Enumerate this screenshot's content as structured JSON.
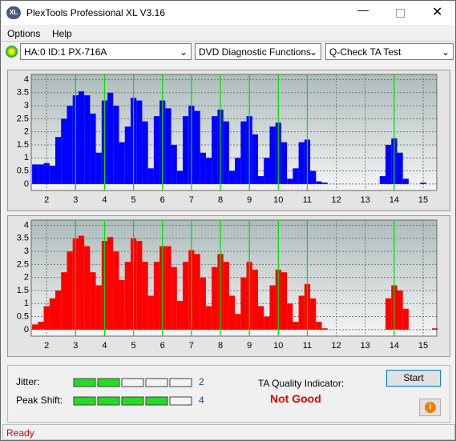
{
  "window": {
    "title": "PlexTools Professional XL V3.16",
    "icon": "XL"
  },
  "menu": [
    "Options",
    "Help"
  ],
  "toolbar": {
    "drive": "HA:0 ID:1  PX-716A",
    "function": "DVD Diagnostic Functions",
    "test": "Q-Check TA Test"
  },
  "charts": [
    {
      "type": "histogram",
      "color": "#0000ff",
      "marker_color": "#00e000",
      "markers": [
        3,
        4,
        5,
        6,
        7,
        8,
        9,
        10,
        11,
        14
      ],
      "xlim": [
        1.47,
        15.47
      ],
      "ylim": [
        -0.25,
        4.2
      ],
      "xticks": [
        2,
        3,
        4,
        5,
        6,
        7,
        8,
        9,
        10,
        11,
        12,
        13,
        14,
        15
      ],
      "yticks": [
        0,
        0.5,
        1,
        1.5,
        2,
        2.5,
        3,
        3.5,
        4
      ],
      "grid": true,
      "bins": [
        1.5,
        1.7,
        1.9,
        2.1,
        2.3,
        2.5,
        2.7,
        2.9,
        3.1,
        3.3,
        3.5,
        3.7,
        3.9,
        4.1,
        4.3,
        4.5,
        4.7,
        4.9,
        5.1,
        5.3,
        5.5,
        5.7,
        5.9,
        6.1,
        6.3,
        6.5,
        6.7,
        6.9,
        7.1,
        7.3,
        7.5,
        7.7,
        7.9,
        8.1,
        8.3,
        8.5,
        8.7,
        8.9,
        9.1,
        9.3,
        9.5,
        9.7,
        9.9,
        10.1,
        10.3,
        10.5,
        10.7,
        10.9,
        11.1,
        11.3,
        11.5,
        11.7,
        11.9,
        12.1,
        12.3,
        12.5,
        12.7,
        12.9,
        13.1,
        13.3,
        13.5,
        13.7,
        13.9,
        14.1,
        14.3,
        14.5,
        14.7,
        14.9,
        15.1,
        15.3,
        15.5
      ],
      "values": [
        0.75,
        0.75,
        0.8,
        0.7,
        1.8,
        2.5,
        3.0,
        3.4,
        3.55,
        3.4,
        2.7,
        1.2,
        3.2,
        3.5,
        3.0,
        1.6,
        2.2,
        3.3,
        3.2,
        2.4,
        0.6,
        2.6,
        3.2,
        2.9,
        1.5,
        0.5,
        2.6,
        3.0,
        2.8,
        1.2,
        1.0,
        2.6,
        2.85,
        2.4,
        0.5,
        1.0,
        2.4,
        2.6,
        1.9,
        0.3,
        1.0,
        2.2,
        2.35,
        1.6,
        0.2,
        0.6,
        1.6,
        1.7,
        0.5,
        0.1,
        0.05,
        0,
        0,
        0,
        0,
        0,
        0,
        0,
        0,
        0,
        0.3,
        1.5,
        1.75,
        1.2,
        0.2,
        0,
        0,
        0.05,
        0,
        0
      ]
    },
    {
      "type": "histogram",
      "color": "#ff0000",
      "marker_color": "#00e000",
      "markers": [
        3,
        4,
        5,
        6,
        7,
        8,
        9,
        10,
        11,
        14
      ],
      "xlim": [
        1.47,
        15.47
      ],
      "ylim": [
        -0.25,
        4.2
      ],
      "xticks": [
        2,
        3,
        4,
        5,
        6,
        7,
        8,
        9,
        10,
        11,
        12,
        13,
        14,
        15
      ],
      "yticks": [
        0,
        0.5,
        1,
        1.5,
        2,
        2.5,
        3,
        3.5,
        4
      ],
      "grid": true,
      "bins": [
        1.5,
        1.7,
        1.9,
        2.1,
        2.3,
        2.5,
        2.7,
        2.9,
        3.1,
        3.3,
        3.5,
        3.7,
        3.9,
        4.1,
        4.3,
        4.5,
        4.7,
        4.9,
        5.1,
        5.3,
        5.5,
        5.7,
        5.9,
        6.1,
        6.3,
        6.5,
        6.7,
        6.9,
        7.1,
        7.3,
        7.5,
        7.7,
        7.9,
        8.1,
        8.3,
        8.5,
        8.7,
        8.9,
        9.1,
        9.3,
        9.5,
        9.7,
        9.9,
        10.1,
        10.3,
        10.5,
        10.7,
        10.9,
        11.1,
        11.3,
        11.5,
        11.7,
        11.9,
        12.1,
        12.3,
        12.5,
        12.7,
        12.9,
        13.1,
        13.3,
        13.5,
        13.7,
        13.9,
        14.1,
        14.3,
        14.5,
        14.7,
        14.9,
        15.1,
        15.3,
        15.5
      ],
      "values": [
        0.2,
        0.3,
        0.9,
        1.2,
        1.5,
        2.2,
        3.0,
        3.5,
        3.6,
        3.2,
        2.2,
        1.7,
        3.4,
        3.55,
        3.0,
        1.9,
        2.6,
        3.5,
        3.4,
        2.6,
        1.3,
        2.6,
        3.2,
        3.2,
        2.4,
        1.1,
        2.6,
        3.05,
        2.9,
        2.0,
        0.9,
        2.4,
        2.9,
        2.6,
        1.3,
        0.6,
        2.0,
        2.6,
        2.3,
        0.9,
        0.5,
        1.7,
        2.3,
        2.2,
        1.0,
        0.3,
        1.3,
        1.75,
        1.2,
        0.3,
        0.05,
        0,
        0,
        0,
        0,
        0,
        0,
        0,
        0,
        0,
        0,
        1.2,
        1.7,
        1.5,
        0.8,
        0,
        0,
        0,
        0,
        0.05
      ]
    }
  ],
  "meters": {
    "segments": 5,
    "items": [
      {
        "label": "Jitter:",
        "value": 2
      },
      {
        "label": "Peak Shift:",
        "value": 4
      }
    ]
  },
  "quality": {
    "label": "TA Quality Indicator:",
    "result": "Not Good"
  },
  "buttons": {
    "start": "Start",
    "info": "i"
  },
  "status": "Ready"
}
